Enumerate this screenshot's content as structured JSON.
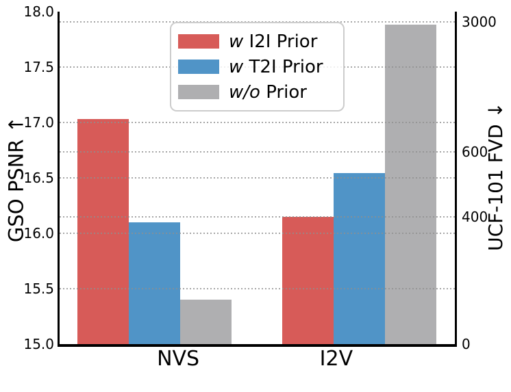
{
  "chart_data": {
    "type": "bar",
    "title": "",
    "categories": [
      "NVS",
      "I2V"
    ],
    "series": [
      {
        "name": "w I2I Prior",
        "color": "#D75B58",
        "nvs_gso_psnr": 17.03,
        "i2v_ucf101_fvd": 400
      },
      {
        "name": "w T2I Prior",
        "color": "#5094C7",
        "nvs_gso_psnr": 16.1,
        "i2v_ucf101_fvd": 535
      },
      {
        "name": "w/o Prior",
        "color": "#AFAFB1",
        "nvs_gso_psnr": 15.4,
        "i2v_ucf101_fvd": 2950
      }
    ],
    "left_axis": {
      "label": "GSO PSNR ↑",
      "min": 15.0,
      "max": 18.0,
      "ticks": [
        {
          "label": "18.0",
          "value": 18.0
        },
        {
          "label": "17.5",
          "value": 17.5
        },
        {
          "label": "17.0",
          "value": 17.0
        },
        {
          "label": "16.5",
          "value": 16.5
        },
        {
          "label": "16.0",
          "value": 16.0
        },
        {
          "label": "15.5",
          "value": 15.5
        },
        {
          "label": "15.0",
          "value": 15.0
        }
      ]
    },
    "right_axis": {
      "label": "UCF-101 FVD ↓",
      "scale": "nonlinear",
      "ticks": [
        {
          "label": "3000",
          "value": 3000,
          "frac_from_top": 0.031
        },
        {
          "label": "600",
          "value": 600,
          "frac_from_top": 0.422
        },
        {
          "label": "400",
          "value": 400,
          "frac_from_top": 0.617
        },
        {
          "label": "0",
          "value": 0,
          "frac_from_top": 1.0
        }
      ]
    },
    "grid": {
      "style": "dotted",
      "color": "#8F8F8F"
    },
    "legend": {
      "items": [
        {
          "italic": "w",
          "rest": " I2I Prior"
        },
        {
          "italic": "w",
          "rest": " T2I Prior"
        },
        {
          "italic": "w/o",
          "rest": " Prior"
        }
      ]
    }
  }
}
